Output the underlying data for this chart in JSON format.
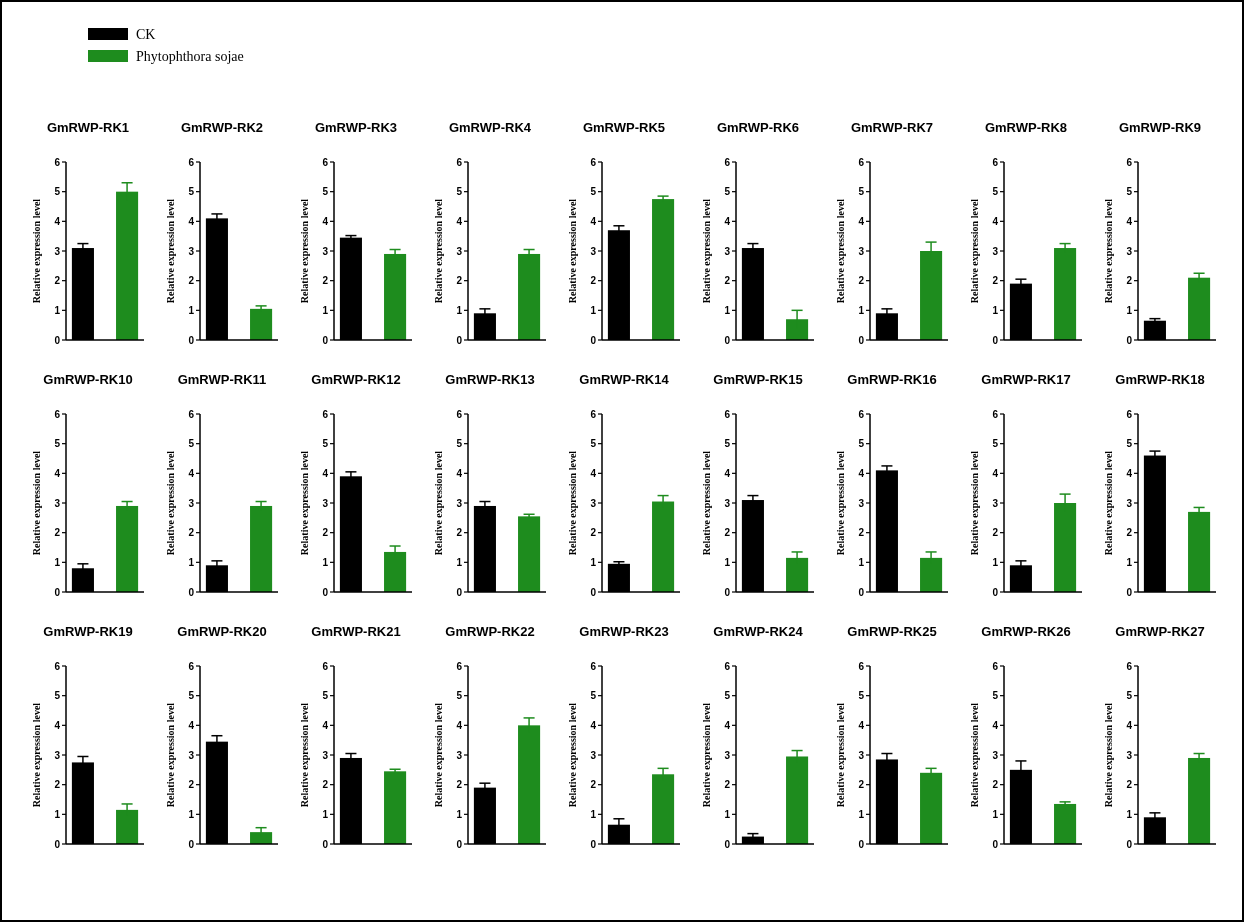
{
  "chart_data": [
    {
      "type": "bar",
      "title": "GmRWP-RK1",
      "ylabel": "Relative expression level",
      "categories": [
        null
      ],
      "ylim": [
        0,
        6
      ],
      "yticks": [
        0,
        1,
        2,
        3,
        4,
        5,
        6
      ],
      "legend": "top",
      "series": [
        {
          "name": "CK",
          "color": "#000000",
          "values": [
            3.1
          ],
          "errors": [
            0.15
          ]
        },
        {
          "name": "Phytophthora sojae",
          "color": "#1e8c1e",
          "values": [
            5.0
          ],
          "errors": [
            0.3
          ]
        }
      ]
    },
    {
      "type": "bar",
      "title": "GmRWP-RK2",
      "ylabel": "Relative expression level",
      "categories": [
        null
      ],
      "ylim": [
        0,
        6
      ],
      "yticks": [
        0,
        1,
        2,
        3,
        4,
        5,
        6
      ],
      "series": [
        {
          "color": "#000000",
          "values": [
            4.1
          ],
          "errors": [
            0.15
          ]
        },
        {
          "color": "#1e8c1e",
          "values": [
            1.05
          ],
          "errors": [
            0.1
          ]
        }
      ]
    },
    {
      "type": "bar",
      "title": "GmRWP-RK3",
      "ylabel": "Relative expression level",
      "categories": [
        null
      ],
      "ylim": [
        0,
        6
      ],
      "yticks": [
        0,
        1,
        2,
        3,
        4,
        5,
        6
      ],
      "series": [
        {
          "color": "#000000",
          "values": [
            3.45
          ],
          "errors": [
            0.07
          ]
        },
        {
          "color": "#1e8c1e",
          "values": [
            2.9
          ],
          "errors": [
            0.15
          ]
        }
      ]
    },
    {
      "type": "bar",
      "title": "GmRWP-RK4",
      "ylabel": "Relative expression level",
      "categories": [
        null
      ],
      "ylim": [
        0,
        6
      ],
      "yticks": [
        0,
        1,
        2,
        3,
        4,
        5,
        6
      ],
      "series": [
        {
          "color": "#000000",
          "values": [
            0.9
          ],
          "errors": [
            0.15
          ]
        },
        {
          "color": "#1e8c1e",
          "values": [
            2.9
          ],
          "errors": [
            0.15
          ]
        }
      ]
    },
    {
      "type": "bar",
      "title": "GmRWP-RK5",
      "ylabel": "Relative expression level",
      "categories": [
        null
      ],
      "ylim": [
        0,
        6
      ],
      "yticks": [
        0,
        1,
        2,
        3,
        4,
        5,
        6
      ],
      "series": [
        {
          "color": "#000000",
          "values": [
            3.7
          ],
          "errors": [
            0.15
          ]
        },
        {
          "color": "#1e8c1e",
          "values": [
            4.75
          ],
          "errors": [
            0.1
          ]
        }
      ]
    },
    {
      "type": "bar",
      "title": "GmRWP-RK6",
      "ylabel": "Relative expression level",
      "categories": [
        null
      ],
      "ylim": [
        0,
        6
      ],
      "yticks": [
        0,
        1,
        2,
        3,
        4,
        5,
        6
      ],
      "series": [
        {
          "color": "#000000",
          "values": [
            3.1
          ],
          "errors": [
            0.15
          ]
        },
        {
          "color": "#1e8c1e",
          "values": [
            0.7
          ],
          "errors": [
            0.3
          ]
        }
      ]
    },
    {
      "type": "bar",
      "title": "GmRWP-RK7",
      "ylabel": "Relative expression level",
      "categories": [
        null
      ],
      "ylim": [
        0,
        6
      ],
      "yticks": [
        0,
        1,
        2,
        3,
        4,
        5,
        6
      ],
      "series": [
        {
          "color": "#000000",
          "values": [
            0.9
          ],
          "errors": [
            0.15
          ]
        },
        {
          "color": "#1e8c1e",
          "values": [
            3.0
          ],
          "errors": [
            0.3
          ]
        }
      ]
    },
    {
      "type": "bar",
      "title": "GmRWP-RK8",
      "ylabel": "Relative expression level",
      "categories": [
        null
      ],
      "ylim": [
        0,
        6
      ],
      "yticks": [
        0,
        1,
        2,
        3,
        4,
        5,
        6
      ],
      "series": [
        {
          "color": "#000000",
          "values": [
            1.9
          ],
          "errors": [
            0.15
          ]
        },
        {
          "color": "#1e8c1e",
          "values": [
            3.1
          ],
          "errors": [
            0.15
          ]
        }
      ]
    },
    {
      "type": "bar",
      "title": "GmRWP-RK9",
      "ylabel": "Relative expression level",
      "categories": [
        null
      ],
      "ylim": [
        0,
        6
      ],
      "yticks": [
        0,
        1,
        2,
        3,
        4,
        5,
        6
      ],
      "series": [
        {
          "color": "#000000",
          "values": [
            0.65
          ],
          "errors": [
            0.07
          ]
        },
        {
          "color": "#1e8c1e",
          "values": [
            2.1
          ],
          "errors": [
            0.15
          ]
        }
      ]
    },
    {
      "type": "bar",
      "title": "GmRWP-RK10",
      "ylabel": "Relative expression level",
      "categories": [
        null
      ],
      "ylim": [
        0,
        6
      ],
      "yticks": [
        0,
        1,
        2,
        3,
        4,
        5,
        6
      ],
      "series": [
        {
          "color": "#000000",
          "values": [
            0.8
          ],
          "errors": [
            0.15
          ]
        },
        {
          "color": "#1e8c1e",
          "values": [
            2.9
          ],
          "errors": [
            0.15
          ]
        }
      ]
    },
    {
      "type": "bar",
      "title": "GmRWP-RK11",
      "ylabel": "Relative expression level",
      "categories": [
        null
      ],
      "ylim": [
        0,
        6
      ],
      "yticks": [
        0,
        1,
        2,
        3,
        4,
        5,
        6
      ],
      "series": [
        {
          "color": "#000000",
          "values": [
            0.9
          ],
          "errors": [
            0.15
          ]
        },
        {
          "color": "#1e8c1e",
          "values": [
            2.9
          ],
          "errors": [
            0.15
          ]
        }
      ]
    },
    {
      "type": "bar",
      "title": "GmRWP-RK12",
      "ylabel": "Relative expression level",
      "categories": [
        null
      ],
      "ylim": [
        0,
        6
      ],
      "yticks": [
        0,
        1,
        2,
        3,
        4,
        5,
        6
      ],
      "series": [
        {
          "color": "#000000",
          "values": [
            3.9
          ],
          "errors": [
            0.15
          ]
        },
        {
          "color": "#1e8c1e",
          "values": [
            1.35
          ],
          "errors": [
            0.2
          ]
        }
      ]
    },
    {
      "type": "bar",
      "title": "GmRWP-RK13",
      "ylabel": "Relative expression level",
      "categories": [
        null
      ],
      "ylim": [
        0,
        6
      ],
      "yticks": [
        0,
        1,
        2,
        3,
        4,
        5,
        6
      ],
      "series": [
        {
          "color": "#000000",
          "values": [
            2.9
          ],
          "errors": [
            0.15
          ]
        },
        {
          "color": "#1e8c1e",
          "values": [
            2.55
          ],
          "errors": [
            0.07
          ]
        }
      ]
    },
    {
      "type": "bar",
      "title": "GmRWP-RK14",
      "ylabel": "Relative expression level",
      "categories": [
        null
      ],
      "ylim": [
        0,
        6
      ],
      "yticks": [
        0,
        1,
        2,
        3,
        4,
        5,
        6
      ],
      "series": [
        {
          "color": "#000000",
          "values": [
            0.95
          ],
          "errors": [
            0.07
          ]
        },
        {
          "color": "#1e8c1e",
          "values": [
            3.05
          ],
          "errors": [
            0.2
          ]
        }
      ]
    },
    {
      "type": "bar",
      "title": "GmRWP-RK15",
      "ylabel": "Relative expression level",
      "categories": [
        null
      ],
      "ylim": [
        0,
        6
      ],
      "yticks": [
        0,
        1,
        2,
        3,
        4,
        5,
        6
      ],
      "series": [
        {
          "color": "#000000",
          "values": [
            3.1
          ],
          "errors": [
            0.15
          ]
        },
        {
          "color": "#1e8c1e",
          "values": [
            1.15
          ],
          "errors": [
            0.2
          ]
        }
      ]
    },
    {
      "type": "bar",
      "title": "GmRWP-RK16",
      "ylabel": "Relative expression level",
      "categories": [
        null
      ],
      "ylim": [
        0,
        6
      ],
      "yticks": [
        0,
        1,
        2,
        3,
        4,
        5,
        6
      ],
      "series": [
        {
          "color": "#000000",
          "values": [
            4.1
          ],
          "errors": [
            0.15
          ]
        },
        {
          "color": "#1e8c1e",
          "values": [
            1.15
          ],
          "errors": [
            0.2
          ]
        }
      ]
    },
    {
      "type": "bar",
      "title": "GmRWP-RK17",
      "ylabel": "Relative expression level",
      "categories": [
        null
      ],
      "ylim": [
        0,
        6
      ],
      "yticks": [
        0,
        1,
        2,
        3,
        4,
        5,
        6
      ],
      "series": [
        {
          "color": "#000000",
          "values": [
            0.9
          ],
          "errors": [
            0.15
          ]
        },
        {
          "color": "#1e8c1e",
          "values": [
            3.0
          ],
          "errors": [
            0.3
          ]
        }
      ]
    },
    {
      "type": "bar",
      "title": "GmRWP-RK18",
      "ylabel": "Relative expression level",
      "categories": [
        null
      ],
      "ylim": [
        0,
        6
      ],
      "yticks": [
        0,
        1,
        2,
        3,
        4,
        5,
        6
      ],
      "series": [
        {
          "color": "#000000",
          "values": [
            4.6
          ],
          "errors": [
            0.15
          ]
        },
        {
          "color": "#1e8c1e",
          "values": [
            2.7
          ],
          "errors": [
            0.15
          ]
        }
      ]
    },
    {
      "type": "bar",
      "title": "GmRWP-RK19",
      "ylabel": "Relative expression level",
      "categories": [
        null
      ],
      "ylim": [
        0,
        6
      ],
      "yticks": [
        0,
        1,
        2,
        3,
        4,
        5,
        6
      ],
      "series": [
        {
          "color": "#000000",
          "values": [
            2.75
          ],
          "errors": [
            0.2
          ]
        },
        {
          "color": "#1e8c1e",
          "values": [
            1.15
          ],
          "errors": [
            0.2
          ]
        }
      ]
    },
    {
      "type": "bar",
      "title": "GmRWP-RK20",
      "ylabel": "Relative expression level",
      "categories": [
        null
      ],
      "ylim": [
        0,
        6
      ],
      "yticks": [
        0,
        1,
        2,
        3,
        4,
        5,
        6
      ],
      "series": [
        {
          "color": "#000000",
          "values": [
            3.45
          ],
          "errors": [
            0.2
          ]
        },
        {
          "color": "#1e8c1e",
          "values": [
            0.4
          ],
          "errors": [
            0.15
          ]
        }
      ]
    },
    {
      "type": "bar",
      "title": "GmRWP-RK21",
      "ylabel": "Relative expression level",
      "categories": [
        null
      ],
      "ylim": [
        0,
        6
      ],
      "yticks": [
        0,
        1,
        2,
        3,
        4,
        5,
        6
      ],
      "series": [
        {
          "color": "#000000",
          "values": [
            2.9
          ],
          "errors": [
            0.15
          ]
        },
        {
          "color": "#1e8c1e",
          "values": [
            2.45
          ],
          "errors": [
            0.07
          ]
        }
      ]
    },
    {
      "type": "bar",
      "title": "GmRWP-RK22",
      "ylabel": "Relative expression level",
      "categories": [
        null
      ],
      "ylim": [
        0,
        6
      ],
      "yticks": [
        0,
        1,
        2,
        3,
        4,
        5,
        6
      ],
      "series": [
        {
          "color": "#000000",
          "values": [
            1.9
          ],
          "errors": [
            0.15
          ]
        },
        {
          "color": "#1e8c1e",
          "values": [
            4.0
          ],
          "errors": [
            0.25
          ]
        }
      ]
    },
    {
      "type": "bar",
      "title": "GmRWP-RK23",
      "ylabel": "Relative expression level",
      "categories": [
        null
      ],
      "ylim": [
        0,
        6
      ],
      "yticks": [
        0,
        1,
        2,
        3,
        4,
        5,
        6
      ],
      "series": [
        {
          "color": "#000000",
          "values": [
            0.65
          ],
          "errors": [
            0.2
          ]
        },
        {
          "color": "#1e8c1e",
          "values": [
            2.35
          ],
          "errors": [
            0.2
          ]
        }
      ]
    },
    {
      "type": "bar",
      "title": "GmRWP-RK24",
      "ylabel": "Relative expression level",
      "categories": [
        null
      ],
      "ylim": [
        0,
        6
      ],
      "yticks": [
        0,
        1,
        2,
        3,
        4,
        5,
        6
      ],
      "series": [
        {
          "color": "#000000",
          "values": [
            0.25
          ],
          "errors": [
            0.1
          ]
        },
        {
          "color": "#1e8c1e",
          "values": [
            2.95
          ],
          "errors": [
            0.2
          ]
        }
      ]
    },
    {
      "type": "bar",
      "title": "GmRWP-RK25",
      "ylabel": "Relative expression level",
      "categories": [
        null
      ],
      "ylim": [
        0,
        6
      ],
      "yticks": [
        0,
        1,
        2,
        3,
        4,
        5,
        6
      ],
      "series": [
        {
          "color": "#000000",
          "values": [
            2.85
          ],
          "errors": [
            0.2
          ]
        },
        {
          "color": "#1e8c1e",
          "values": [
            2.4
          ],
          "errors": [
            0.15
          ]
        }
      ]
    },
    {
      "type": "bar",
      "title": "GmRWP-RK26",
      "ylabel": "Relative expression level",
      "categories": [
        null
      ],
      "ylim": [
        0,
        6
      ],
      "yticks": [
        0,
        1,
        2,
        3,
        4,
        5,
        6
      ],
      "series": [
        {
          "color": "#000000",
          "values": [
            2.5
          ],
          "errors": [
            0.3
          ]
        },
        {
          "color": "#1e8c1e",
          "values": [
            1.35
          ],
          "errors": [
            0.07
          ]
        }
      ]
    },
    {
      "type": "bar",
      "title": "GmRWP-RK27",
      "ylabel": "Relative expression level",
      "categories": [
        null
      ],
      "ylim": [
        0,
        6
      ],
      "yticks": [
        0,
        1,
        2,
        3,
        4,
        5,
        6
      ],
      "series": [
        {
          "color": "#000000",
          "values": [
            0.9
          ],
          "errors": [
            0.15
          ]
        },
        {
          "color": "#1e8c1e",
          "values": [
            2.9
          ],
          "errors": [
            0.15
          ]
        }
      ]
    }
  ]
}
